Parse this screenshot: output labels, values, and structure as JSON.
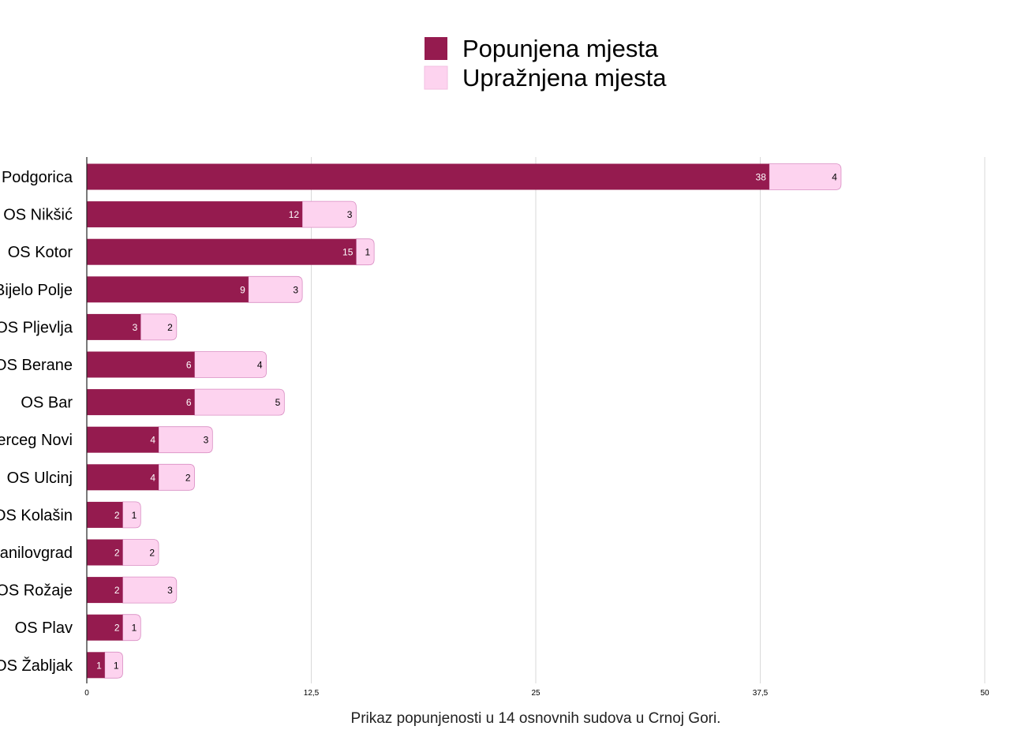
{
  "chart_data": {
    "type": "bar",
    "orientation": "horizontal",
    "stacked": true,
    "title": "",
    "caption": "Prikaz popunjenosti u 14 osnovnih sudova u Crnoj Gori.",
    "xlabel": "",
    "ylabel": "",
    "xlim": [
      0,
      50
    ],
    "x_ticks": [
      "0",
      "12,5",
      "25",
      "37,5",
      "50"
    ],
    "x_tick_values": [
      0,
      12.5,
      25,
      37.5,
      50
    ],
    "grid": true,
    "legend_position": "top",
    "categories": [
      "OS Podgorica",
      "OS Nikšić",
      "OS Kotor",
      "OS Bijelo Polje",
      "OS Pljevlja",
      "OS Berane",
      "OS Bar",
      "OS Herceg Novi",
      "OS Ulcinj",
      "OS Kolašin",
      "OS Danilovgrad",
      "OS Rožaje",
      "OS Plav",
      "OS Žabljak"
    ],
    "series": [
      {
        "name": "Popunjena mjesta",
        "color": "#951b4f",
        "label_color": "#ffffff",
        "values": [
          38,
          12,
          15,
          9,
          3,
          6,
          6,
          4,
          4,
          2,
          2,
          2,
          2,
          1
        ]
      },
      {
        "name": "Upražnjena mjesta",
        "color": "#fdd3ef",
        "label_color": "#000000",
        "values": [
          4,
          3,
          1,
          3,
          2,
          4,
          5,
          3,
          2,
          1,
          2,
          3,
          1,
          1
        ]
      }
    ]
  }
}
